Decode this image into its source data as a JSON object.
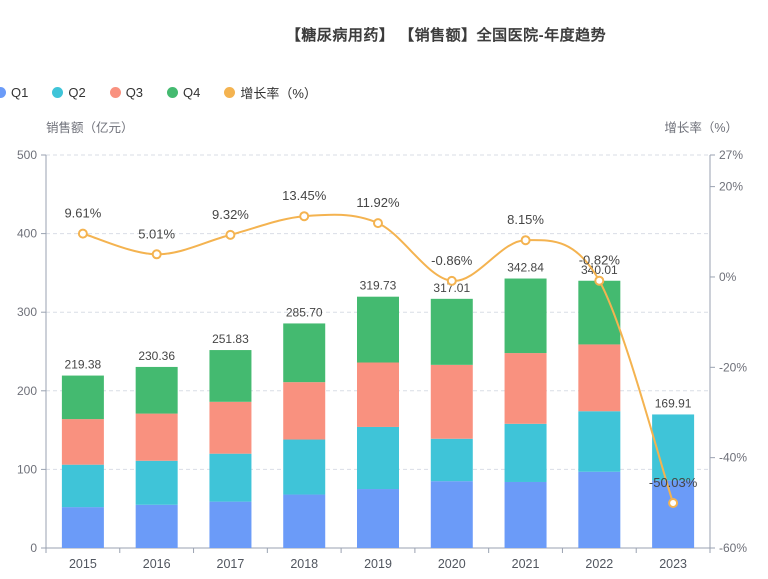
{
  "title": "【糖尿病用药】 【销售额】全国医院-年度趋势",
  "legend": {
    "items": [
      {
        "label": "Q1",
        "color": "#6b9bf8"
      },
      {
        "label": "Q2",
        "color": "#3fc4d8"
      },
      {
        "label": "Q3",
        "color": "#f9917f"
      },
      {
        "label": "Q4",
        "color": "#44ba70"
      },
      {
        "label": "增长率（%）",
        "color": "#f4b350"
      }
    ]
  },
  "left_axis": {
    "name": "销售额（亿元）",
    "ticks": [
      0,
      100,
      200,
      300,
      400,
      500
    ]
  },
  "right_axis": {
    "name": "增长率（%）",
    "tick_values": [
      27,
      20,
      0,
      -20,
      -40,
      -60
    ],
    "tick_labels": [
      "27%",
      "20%",
      "0%",
      "-20%",
      "-40%",
      "-60%"
    ]
  },
  "chart_data": {
    "type": "bar",
    "stacked": true,
    "title": "【糖尿病用药】 【销售额】全国医院-年度趋势",
    "categories": [
      "2015",
      "2016",
      "2017",
      "2018",
      "2019",
      "2020",
      "2021",
      "2022",
      "2023"
    ],
    "series": [
      {
        "name": "Q1",
        "type": "bar",
        "color": "#6b9bf8",
        "values": [
          52,
          55,
          59,
          68,
          75,
          85,
          84,
          97,
          86
        ]
      },
      {
        "name": "Q2",
        "type": "bar",
        "color": "#3fc4d8",
        "values": [
          54,
          56,
          61,
          70,
          79,
          54,
          74,
          77,
          83.91
        ]
      },
      {
        "name": "Q3",
        "type": "bar",
        "color": "#f9917f",
        "values": [
          58,
          60,
          66,
          73,
          82,
          94,
          90,
          85,
          0
        ]
      },
      {
        "name": "Q4",
        "type": "bar",
        "color": "#44ba70",
        "values": [
          55.38,
          59.36,
          65.83,
          74.7,
          83.73,
          84.01,
          94.84,
          81.01,
          0
        ]
      },
      {
        "name": "增长率（%）",
        "type": "line",
        "axis": "right",
        "color": "#f4b350",
        "values": [
          9.61,
          5.01,
          9.32,
          13.45,
          11.92,
          -0.86,
          8.15,
          -0.82,
          -50.03
        ]
      }
    ],
    "totals": [
      219.38,
      230.36,
      251.83,
      285.7,
      319.73,
      317.01,
      342.84,
      340.01,
      169.91
    ],
    "total_labels": [
      "219.38",
      "230.36",
      "251.83",
      "285.70",
      "319.73",
      "317.01",
      "342.84",
      "340.01",
      "169.91"
    ],
    "growth_labels": [
      "9.61%",
      "5.01%",
      "9.32%",
      "13.45%",
      "11.92%",
      "-0.86%",
      "8.15%",
      "-0.82%",
      "-50.03%"
    ],
    "xlabel": "",
    "ylabel_left": "销售额（亿元）",
    "ylabel_right": "增长率（%）",
    "ylim_left": [
      0,
      500
    ],
    "ylim_right": [
      -60,
      27
    ],
    "grid": true,
    "legend_position": "top-left"
  }
}
